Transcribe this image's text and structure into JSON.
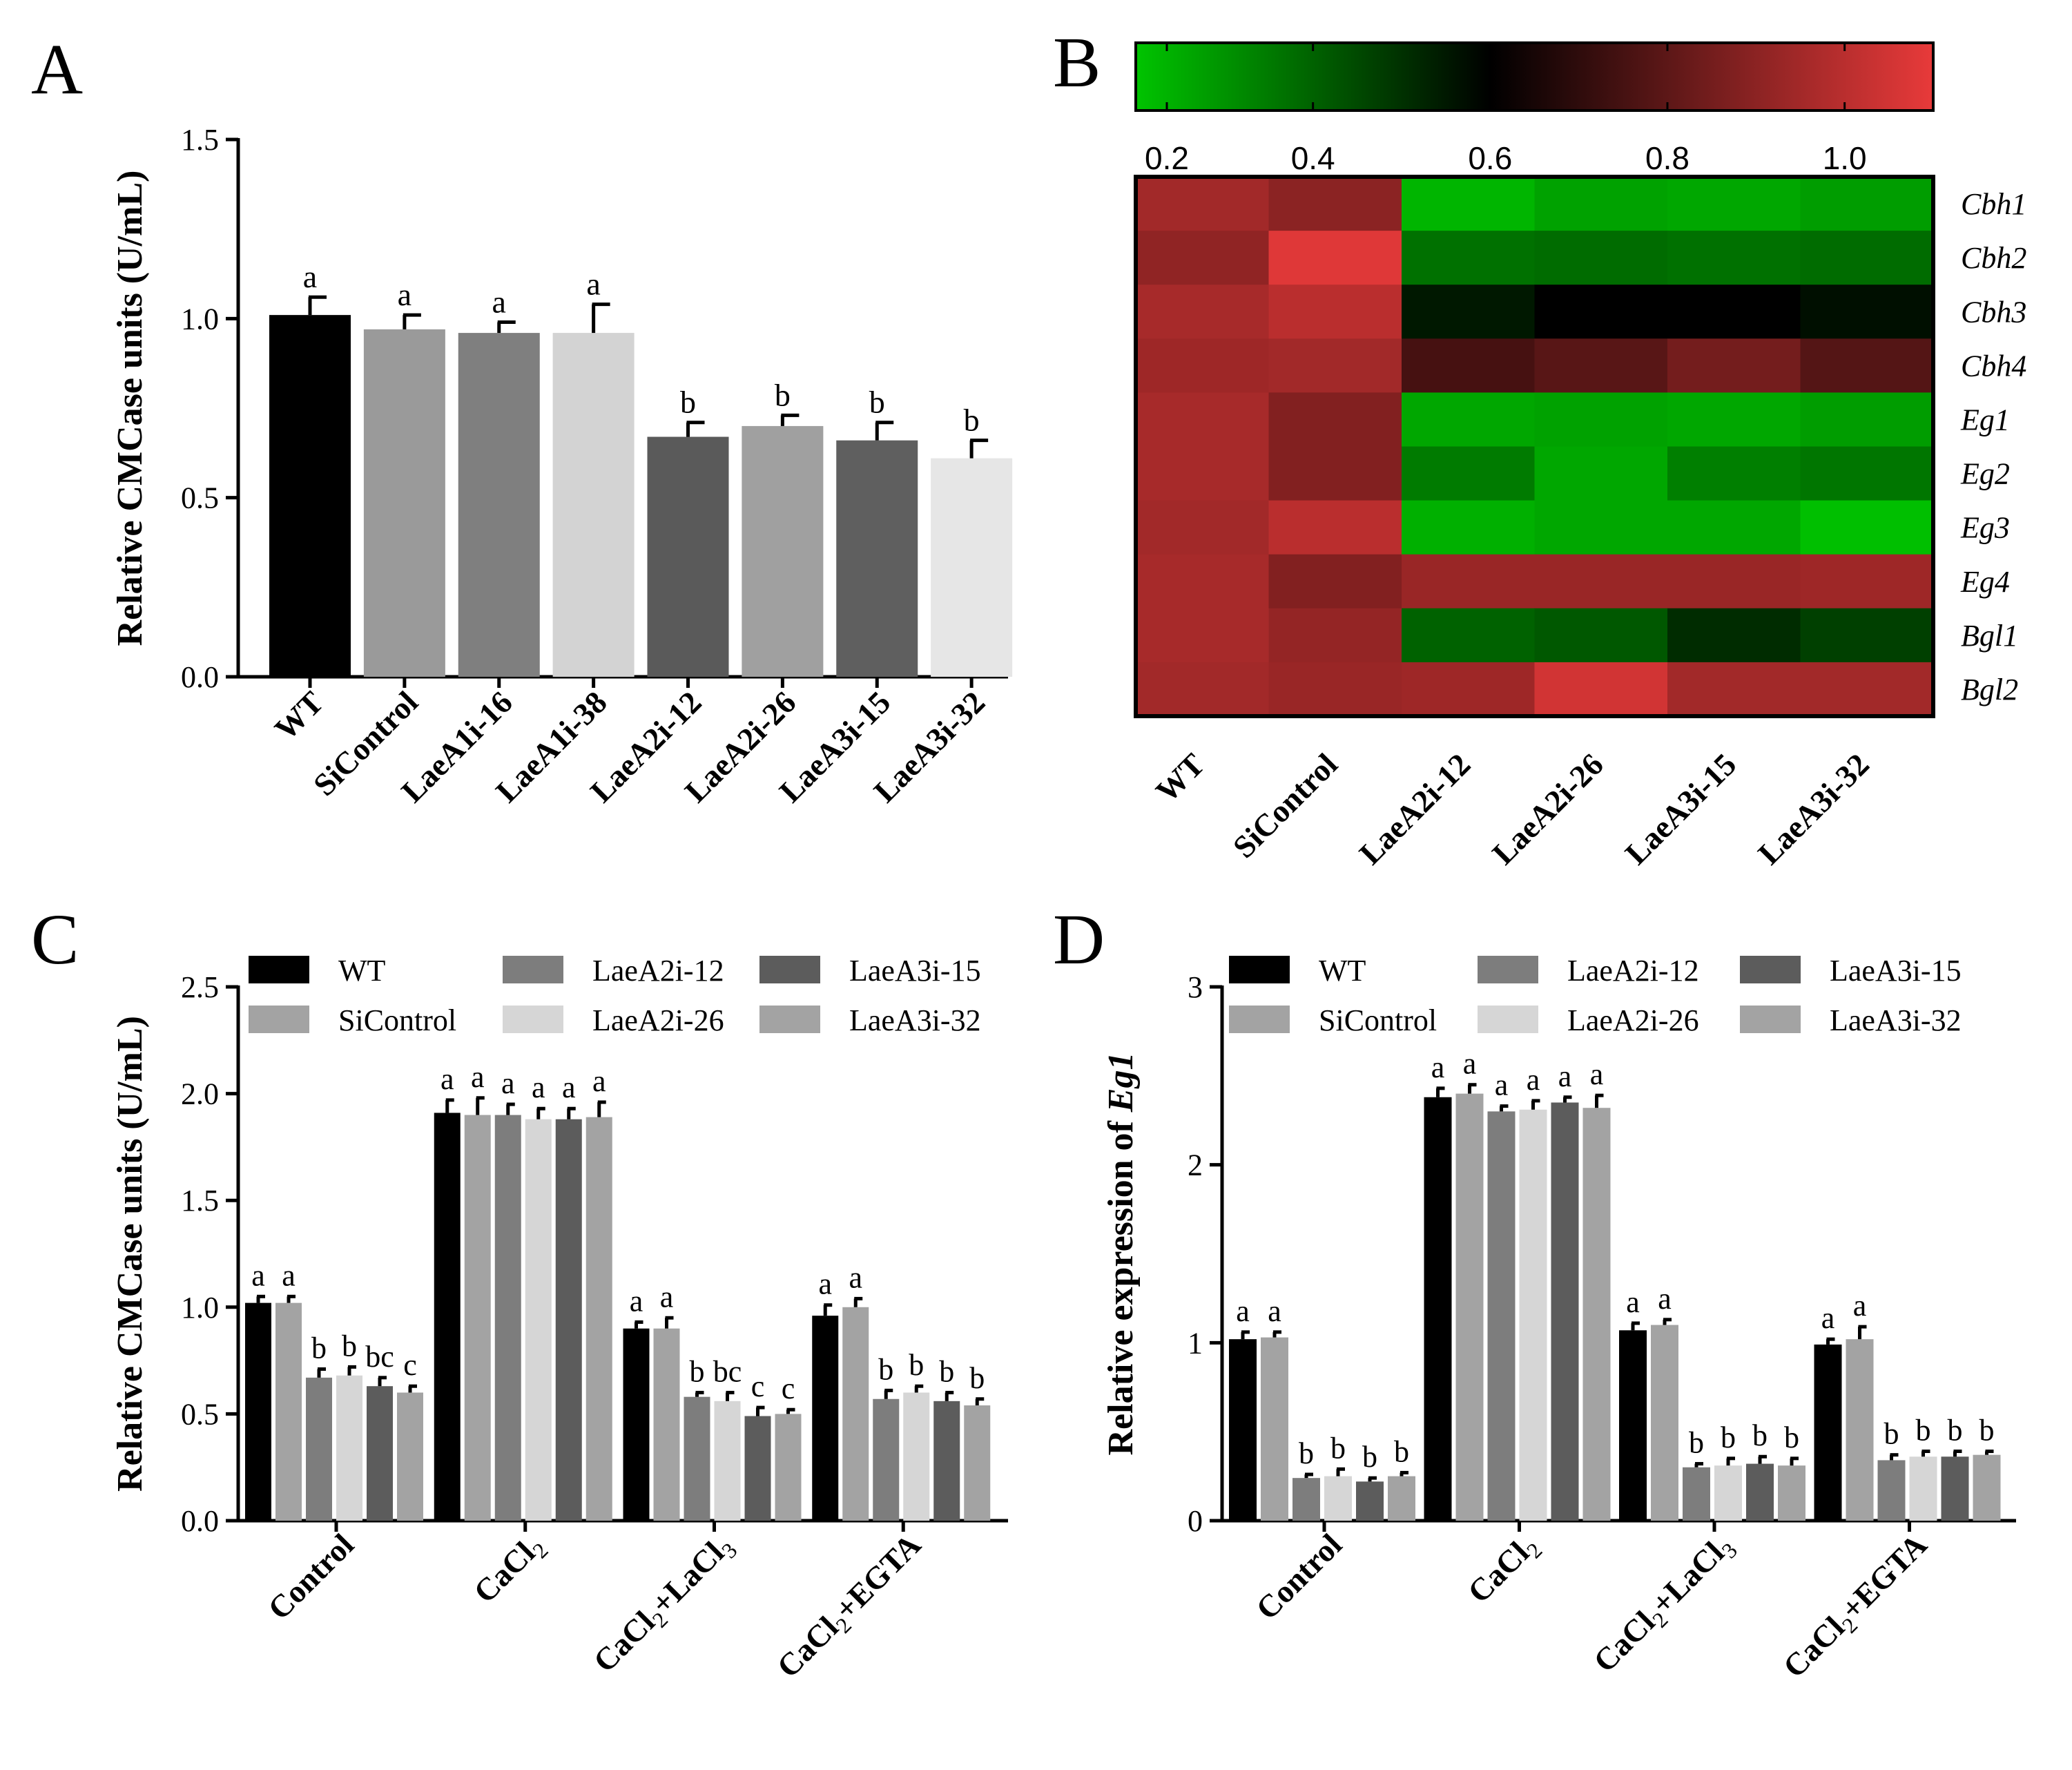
{
  "panels": {
    "A": "A",
    "B": "B",
    "C": "C",
    "D": "D"
  },
  "chart_data": [
    {
      "panel": "A",
      "type": "bar",
      "title": "",
      "xlabel": "",
      "ylabel": "Relative CMCase units (U/mL)",
      "ylim": [
        0,
        1.5
      ],
      "yticks": [
        "0.0",
        "0.5",
        "1.0",
        "1.5"
      ],
      "yticks_values": [
        0,
        0.5,
        1.0,
        1.5
      ],
      "categories": [
        "WT",
        "SiControl",
        "LaeA1i-16",
        "LaeA1i-38",
        "LaeA2i-12",
        "LaeA2i-26",
        "LaeA3i-15",
        "LaeA3i-32"
      ],
      "values": [
        1.01,
        0.97,
        0.96,
        0.96,
        0.67,
        0.7,
        0.66,
        0.61
      ],
      "errors": [
        0.05,
        0.04,
        0.03,
        0.08,
        0.04,
        0.03,
        0.05,
        0.05
      ],
      "letters": [
        "a",
        "a",
        "a",
        "a",
        "b",
        "b",
        "b",
        "b"
      ],
      "colors": [
        "#000000",
        "#9a9a9a",
        "#7f7f7f",
        "#d3d3d3",
        "#5a5a5a",
        "#a0a0a0",
        "#5f5f5f",
        "#e6e6e6"
      ]
    },
    {
      "panel": "B",
      "type": "heatmap",
      "columns": [
        "WT",
        "SiControl",
        "LaeA2i-12",
        "LaeA2i-26",
        "LaeA3i-15",
        "LaeA3i-32"
      ],
      "rows": [
        "Cbh1",
        "Cbh2",
        "Cbh3",
        "Cbh4",
        "Eg1",
        "Eg2",
        "Eg3",
        "Eg4",
        "Bgl1",
        "Bgl2"
      ],
      "values": [
        [
          0.95,
          0.9,
          0.23,
          0.27,
          0.26,
          0.28
        ],
        [
          0.91,
          1.08,
          0.37,
          0.38,
          0.37,
          0.38
        ],
        [
          0.96,
          1.0,
          0.55,
          0.6,
          0.6,
          0.57
        ],
        [
          0.94,
          0.95,
          0.75,
          0.79,
          0.85,
          0.78
        ],
        [
          0.96,
          0.88,
          0.26,
          0.27,
          0.26,
          0.28
        ],
        [
          0.96,
          0.88,
          0.35,
          0.26,
          0.34,
          0.36
        ],
        [
          0.95,
          1.0,
          0.24,
          0.26,
          0.26,
          0.21
        ],
        [
          0.96,
          0.88,
          0.93,
          0.93,
          0.93,
          0.94
        ],
        [
          0.96,
          0.92,
          0.4,
          0.42,
          0.51,
          0.47
        ],
        [
          0.95,
          0.93,
          0.94,
          1.05,
          0.95,
          0.95
        ]
      ],
      "colorbar": {
        "min": 0.2,
        "max": 1.1,
        "ticks": [
          "0.2",
          "0.4",
          "0.6",
          "0.8",
          "1.0"
        ],
        "ticks_values": [
          0.2,
          0.4,
          0.6,
          0.8,
          1.0
        ],
        "low_color": "#00c400",
        "mid_color": "#000000",
        "high_color": "#e83a3a",
        "mid_value": 0.6
      }
    },
    {
      "panel": "C",
      "type": "bar",
      "title": "",
      "xlabel": "",
      "ylabel": "Relative CMCase units (U/mL)",
      "ylim": [
        0,
        2.5
      ],
      "yticks": [
        "0.0",
        "0.5",
        "1.0",
        "1.5",
        "2.0",
        "2.5"
      ],
      "yticks_values": [
        0,
        0.5,
        1.0,
        1.5,
        2.0,
        2.5
      ],
      "groups": [
        {
          "base": "Control",
          "sub": "",
          "tail": ""
        },
        {
          "base": "CaCl",
          "sub": "2",
          "tail": ""
        },
        {
          "base": "CaCl",
          "sub": "2",
          "tail": "+LaCl",
          "sub2": "3"
        },
        {
          "base": "CaCl",
          "sub": "2",
          "tail": "+EGTA"
        }
      ],
      "series": [
        {
          "name": "WT",
          "color": "#000000",
          "values": [
            1.02,
            1.91,
            0.9,
            0.96
          ],
          "errors": [
            0.03,
            0.06,
            0.03,
            0.05
          ],
          "letters": [
            "a",
            "a",
            "a",
            "a"
          ]
        },
        {
          "name": "SiControl",
          "color": "#a3a3a3",
          "values": [
            1.02,
            1.9,
            0.9,
            1.0
          ],
          "errors": [
            0.03,
            0.08,
            0.05,
            0.04
          ],
          "letters": [
            "a",
            "a",
            "a",
            "a"
          ]
        },
        {
          "name": "LaeA2i-12",
          "color": "#7d7d7d",
          "values": [
            0.67,
            1.9,
            0.58,
            0.57
          ],
          "errors": [
            0.04,
            0.05,
            0.02,
            0.04
          ],
          "letters": [
            "b",
            "a",
            "b",
            "b"
          ]
        },
        {
          "name": "LaeA2i-26",
          "color": "#d6d6d6",
          "values": [
            0.68,
            1.88,
            0.56,
            0.6
          ],
          "errors": [
            0.04,
            0.05,
            0.04,
            0.03
          ],
          "letters": [
            "b",
            "a",
            "bc",
            "b"
          ]
        },
        {
          "name": "LaeA3i-15",
          "color": "#5c5c5c",
          "values": [
            0.63,
            1.88,
            0.49,
            0.56
          ],
          "errors": [
            0.04,
            0.05,
            0.04,
            0.04
          ],
          "letters": [
            "bc",
            "a",
            "c",
            "b"
          ]
        },
        {
          "name": "LaeA3i-32",
          "color": "#a3a3a3",
          "values": [
            0.6,
            1.89,
            0.5,
            0.54
          ],
          "errors": [
            0.03,
            0.07,
            0.02,
            0.03
          ],
          "letters": [
            "c",
            "a",
            "c",
            "b"
          ]
        }
      ],
      "legend_position": "top"
    },
    {
      "panel": "D",
      "type": "bar",
      "title": "",
      "xlabel": "",
      "ylabel_prefix": "Relative expression of ",
      "ylabel_gene": "Eg1",
      "ylim": [
        0,
        3
      ],
      "yticks": [
        "0",
        "1",
        "2",
        "3"
      ],
      "yticks_values": [
        0,
        1,
        2,
        3
      ],
      "groups": [
        {
          "base": "Control",
          "sub": "",
          "tail": ""
        },
        {
          "base": "CaCl",
          "sub": "2",
          "tail": ""
        },
        {
          "base": "CaCl",
          "sub": "2",
          "tail": "+LaCl",
          "sub2": "3"
        },
        {
          "base": "CaCl",
          "sub": "2",
          "tail": "+EGTA"
        }
      ],
      "series": [
        {
          "name": "WT",
          "color": "#000000",
          "values": [
            1.02,
            2.38,
            1.07,
            0.99
          ],
          "errors": [
            0.04,
            0.05,
            0.04,
            0.03
          ],
          "letters": [
            "a",
            "a",
            "a",
            "a"
          ]
        },
        {
          "name": "SiControl",
          "color": "#a3a3a3",
          "values": [
            1.03,
            2.4,
            1.1,
            1.02
          ],
          "errors": [
            0.03,
            0.05,
            0.03,
            0.07
          ],
          "letters": [
            "a",
            "a",
            "a",
            "a"
          ]
        },
        {
          "name": "LaeA2i-12",
          "color": "#7d7d7d",
          "values": [
            0.24,
            2.3,
            0.3,
            0.34
          ],
          "errors": [
            0.02,
            0.03,
            0.02,
            0.03
          ],
          "letters": [
            "b",
            "a",
            "b",
            "b"
          ]
        },
        {
          "name": "LaeA2i-26",
          "color": "#d6d6d6",
          "values": [
            0.25,
            2.31,
            0.31,
            0.36
          ],
          "errors": [
            0.04,
            0.05,
            0.04,
            0.03
          ],
          "letters": [
            "b",
            "a",
            "b",
            "b"
          ]
        },
        {
          "name": "LaeA3i-15",
          "color": "#5c5c5c",
          "values": [
            0.22,
            2.35,
            0.32,
            0.36
          ],
          "errors": [
            0.02,
            0.03,
            0.04,
            0.03
          ],
          "letters": [
            "b",
            "a",
            "b",
            "b"
          ]
        },
        {
          "name": "LaeA3i-32",
          "color": "#a3a3a3",
          "values": [
            0.25,
            2.32,
            0.31,
            0.37
          ],
          "errors": [
            0.02,
            0.07,
            0.04,
            0.02
          ],
          "letters": [
            "b",
            "a",
            "b",
            "b"
          ]
        }
      ],
      "legend_position": "top"
    }
  ]
}
